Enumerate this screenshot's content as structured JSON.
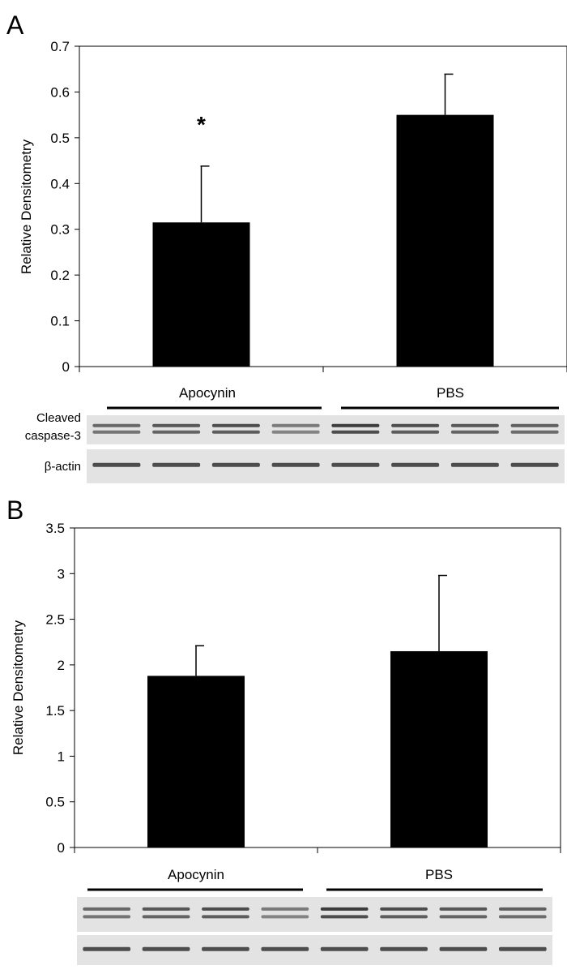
{
  "chart_data": [
    {
      "panel": "A",
      "type": "bar",
      "title": "",
      "xlabel": "",
      "ylabel": "Relative Densitometry",
      "ylim": [
        0,
        0.7
      ],
      "yticks": [
        "0",
        "0.1",
        "0.2",
        "0.3",
        "0.4",
        "0.5",
        "0.6",
        "0.7"
      ],
      "categories": [
        "Apocynin",
        "PBS"
      ],
      "values": [
        0.315,
        0.55
      ],
      "errors": [
        0.123,
        0.089
      ],
      "annotations": [
        "*",
        ""
      ],
      "bar_color": "#000000",
      "blot": {
        "groups": [
          "Apocynin",
          "PBS"
        ],
        "lanes_per_group": 4,
        "rows": [
          {
            "label_lines": [
              "Cleaved",
              "caspase-3"
            ],
            "doublet": true
          },
          {
            "label_lines": [
              "β-actin"
            ],
            "doublet": false
          }
        ]
      }
    },
    {
      "panel": "B",
      "type": "bar",
      "title": "",
      "xlabel": "",
      "ylabel": "Relative Densitometry",
      "ylim": [
        0,
        3.5
      ],
      "yticks": [
        "0",
        "0.5",
        "1",
        "1.5",
        "2",
        "2.5",
        "3",
        "3.5"
      ],
      "categories": [
        "Apocynin",
        "PBS"
      ],
      "values": [
        1.88,
        2.15
      ],
      "errors": [
        0.33,
        0.83
      ],
      "annotations": [
        "",
        ""
      ],
      "bar_color": "#000000",
      "blot": {
        "groups": [
          "Apocynin",
          "PBS"
        ],
        "lanes_per_group": 4,
        "rows": [
          {
            "label_lines": [],
            "doublet": true
          },
          {
            "label_lines": [],
            "doublet": false
          }
        ]
      }
    }
  ]
}
